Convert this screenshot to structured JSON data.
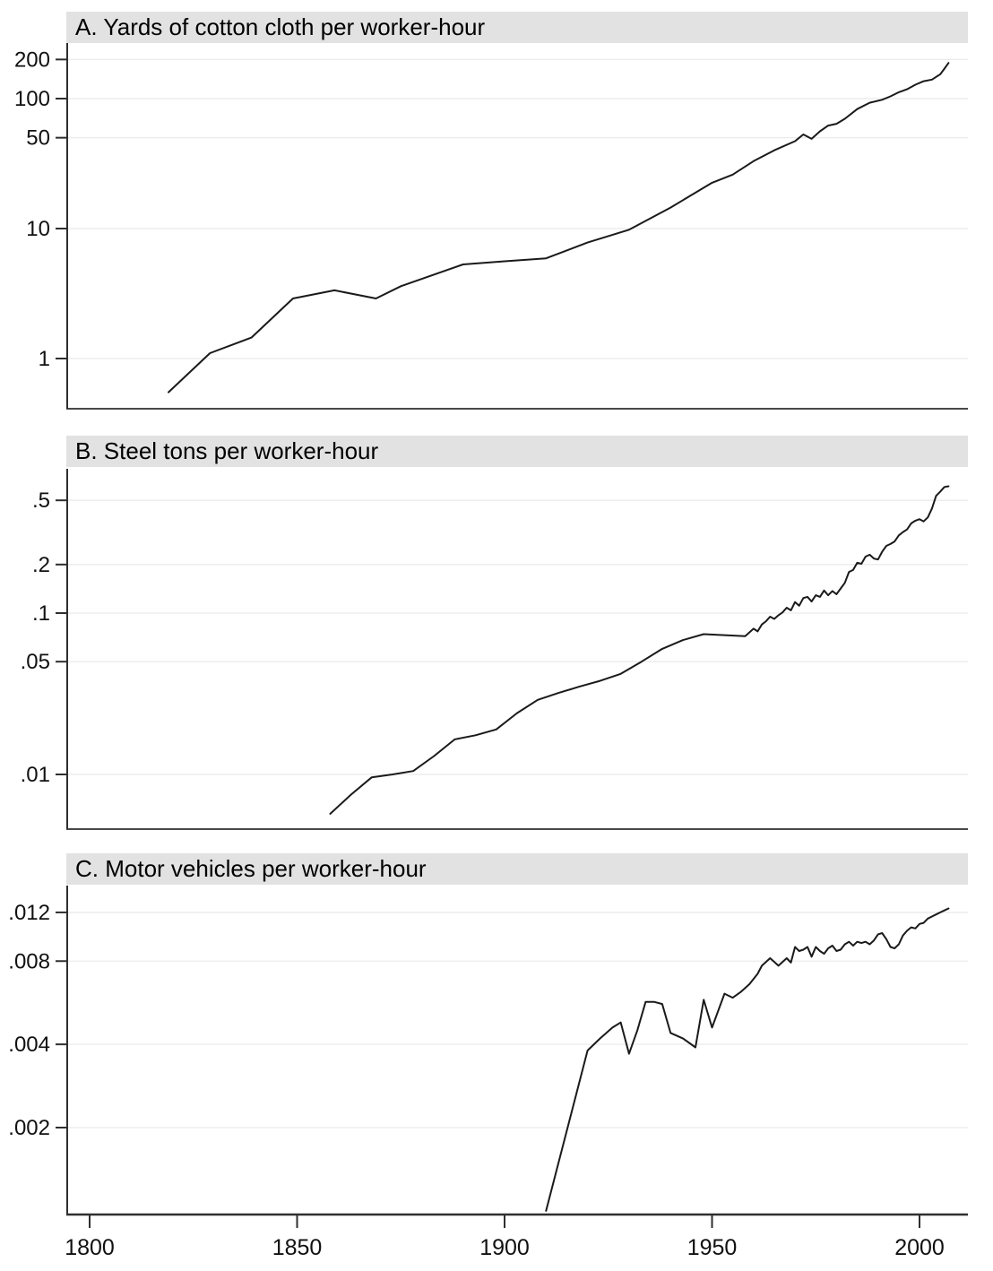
{
  "figure": {
    "background": "#ffffff",
    "header_bg": "#e2e2e2",
    "line_color": "#1a1a1a",
    "gridline_color": "#ebebeb",
    "axis_color": "#2f2f2f",
    "label_color": "#111111",
    "x_axis": {
      "tick_labels": [
        "1800",
        "1850",
        "1900",
        "1950",
        "2000"
      ],
      "ticks": [
        1800,
        1850,
        1900,
        1950,
        2000
      ],
      "xlim": [
        1795,
        2012
      ]
    }
  },
  "chart_data": [
    {
      "type": "line",
      "panel": "A",
      "title": "A. Yards of cotton cloth per worker-hour",
      "yscale": "log",
      "grid": true,
      "legend": null,
      "xlim": [
        1795,
        2012
      ],
      "ylim": [
        0.41,
        267
      ],
      "yticks": [
        200,
        100,
        50,
        10,
        1
      ],
      "ytick_labels": [
        "200",
        "100",
        "50",
        "10",
        "1"
      ],
      "x": [
        1819,
        1829,
        1839,
        1849,
        1859,
        1869,
        1875,
        1890,
        1900,
        1910,
        1920,
        1930,
        1940,
        1950,
        1955,
        1960,
        1965,
        1970,
        1972,
        1974,
        1976,
        1978,
        1980,
        1982,
        1985,
        1988,
        1991,
        1993,
        1995,
        1997,
        1999,
        2001,
        2003,
        2005,
        2006,
        2007
      ],
      "y": [
        0.55,
        1.1,
        1.45,
        2.9,
        3.35,
        2.9,
        3.6,
        5.3,
        5.6,
        5.9,
        7.8,
        9.8,
        14.5,
        22.5,
        26,
        33,
        40,
        47,
        53,
        49,
        56,
        62,
        64,
        70,
        83,
        93,
        98,
        104,
        112,
        118,
        128,
        136,
        140,
        154,
        170,
        188
      ]
    },
    {
      "type": "line",
      "panel": "B",
      "title": "B. Steel tons per worker-hour",
      "yscale": "log",
      "grid": true,
      "legend": null,
      "xlim": [
        1795,
        2012
      ],
      "ylim": [
        0.0046,
        0.78
      ],
      "yticks": [
        0.5,
        0.2,
        0.1,
        0.05,
        0.01
      ],
      "ytick_labels": [
        ".5",
        ".2",
        ".1",
        ".05",
        ".01"
      ],
      "x": [
        1858,
        1863,
        1868,
        1873,
        1878,
        1883,
        1888,
        1893,
        1898,
        1903,
        1908,
        1913,
        1918,
        1923,
        1928,
        1933,
        1938,
        1943,
        1948,
        1953,
        1958,
        1960,
        1961,
        1962,
        1963,
        1964,
        1965,
        1966,
        1967,
        1968,
        1969,
        1970,
        1971,
        1972,
        1973,
        1974,
        1975,
        1976,
        1977,
        1978,
        1979,
        1980,
        1981,
        1982,
        1983,
        1984,
        1985,
        1986,
        1987,
        1988,
        1989,
        1990,
        1991,
        1992,
        1993,
        1994,
        1995,
        1996,
        1997,
        1998,
        1999,
        2000,
        2001,
        2002,
        2003,
        2004,
        2005,
        2006,
        2007
      ],
      "y": [
        0.0057,
        0.0075,
        0.0096,
        0.01,
        0.0105,
        0.013,
        0.0165,
        0.0175,
        0.019,
        0.024,
        0.029,
        0.032,
        0.035,
        0.038,
        0.042,
        0.05,
        0.06,
        0.068,
        0.074,
        0.073,
        0.072,
        0.08,
        0.077,
        0.085,
        0.089,
        0.095,
        0.092,
        0.097,
        0.101,
        0.108,
        0.104,
        0.117,
        0.111,
        0.124,
        0.126,
        0.118,
        0.129,
        0.126,
        0.138,
        0.129,
        0.137,
        0.131,
        0.142,
        0.154,
        0.18,
        0.185,
        0.205,
        0.202,
        0.224,
        0.23,
        0.218,
        0.215,
        0.24,
        0.261,
        0.268,
        0.278,
        0.303,
        0.318,
        0.33,
        0.36,
        0.374,
        0.382,
        0.37,
        0.392,
        0.445,
        0.533,
        0.567,
        0.605,
        0.611
      ]
    },
    {
      "type": "line",
      "panel": "C",
      "title": "C. Motor vehicles per worker-hour",
      "yscale": "log",
      "grid": true,
      "legend": null,
      "xlim": [
        1795,
        2012
      ],
      "ylim": [
        0.00097,
        0.015
      ],
      "yticks": [
        0.012,
        0.008,
        0.004,
        0.002
      ],
      "ytick_labels": [
        ".012",
        ".008",
        ".004",
        ".002"
      ],
      "x": [
        1910,
        1920,
        1923,
        1926,
        1928,
        1930,
        1932,
        1934,
        1936,
        1938,
        1940,
        1943,
        1946,
        1948,
        1950,
        1953,
        1955,
        1957,
        1959,
        1961,
        1962,
        1964,
        1966,
        1968,
        1969,
        1970,
        1971,
        1972,
        1973,
        1974,
        1975,
        1976,
        1977,
        1978,
        1979,
        1980,
        1981,
        1982,
        1983,
        1984,
        1985,
        1986,
        1987,
        1988,
        1989,
        1990,
        1991,
        1992,
        1993,
        1994,
        1995,
        1996,
        1997,
        1998,
        1999,
        2000,
        2001,
        2002,
        2003,
        2004,
        2005,
        2006,
        2007
      ],
      "y": [
        0.001,
        0.0038,
        0.0042,
        0.0046,
        0.0048,
        0.0037,
        0.0045,
        0.0057,
        0.0057,
        0.0056,
        0.0044,
        0.0042,
        0.0039,
        0.0058,
        0.0046,
        0.0061,
        0.0059,
        0.0062,
        0.0066,
        0.0072,
        0.0077,
        0.0082,
        0.0077,
        0.0082,
        0.0079,
        0.009,
        0.0087,
        0.0088,
        0.009,
        0.0083,
        0.009,
        0.0087,
        0.0085,
        0.0089,
        0.0091,
        0.0087,
        0.0088,
        0.0092,
        0.0094,
        0.0091,
        0.0094,
        0.0093,
        0.0094,
        0.0092,
        0.0095,
        0.01,
        0.0101,
        0.0096,
        0.009,
        0.0089,
        0.0092,
        0.0099,
        0.0103,
        0.0106,
        0.0105,
        0.0109,
        0.011,
        0.0114,
        0.0116,
        0.0118,
        0.012,
        0.0122,
        0.0124
      ]
    }
  ]
}
